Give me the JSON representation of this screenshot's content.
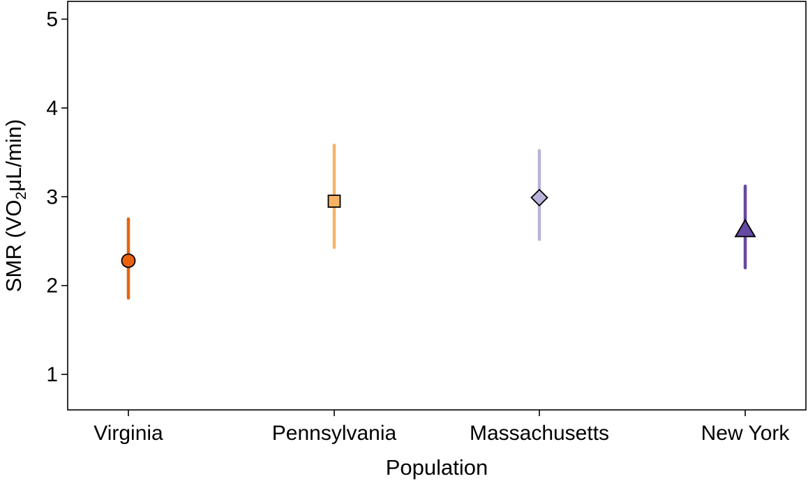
{
  "chart_data": {
    "type": "scatter",
    "title": "",
    "xlabel": "Population",
    "ylabel": {
      "prefix": "SMR (VO",
      "subscript": "2",
      "suffix": "μL/min)"
    },
    "ylim": [
      0.6,
      5.2
    ],
    "yticks": [
      1,
      2,
      3,
      4,
      5
    ],
    "grid": false,
    "categories": [
      "Virginia",
      "Pennsylvania",
      "Massachusetts",
      "New York"
    ],
    "points": [
      {
        "category": "Virginia",
        "mean": 2.28,
        "lower": 1.86,
        "upper": 2.75,
        "marker": "circle",
        "color": "#e8620f",
        "error_color": "#e8620f"
      },
      {
        "category": "Pennsylvania",
        "mean": 2.95,
        "lower": 2.43,
        "upper": 3.58,
        "marker": "square",
        "color": "#f7b365",
        "error_color": "#f7b365"
      },
      {
        "category": "Massachusetts",
        "mean": 2.99,
        "lower": 2.52,
        "upper": 3.52,
        "marker": "diamond",
        "color": "#b9b3d9",
        "error_color": "#b9b3d9"
      },
      {
        "category": "New York",
        "mean": 2.63,
        "lower": 2.2,
        "upper": 3.12,
        "marker": "triangle",
        "color": "#6549a3",
        "error_color": "#6549a3"
      }
    ]
  }
}
